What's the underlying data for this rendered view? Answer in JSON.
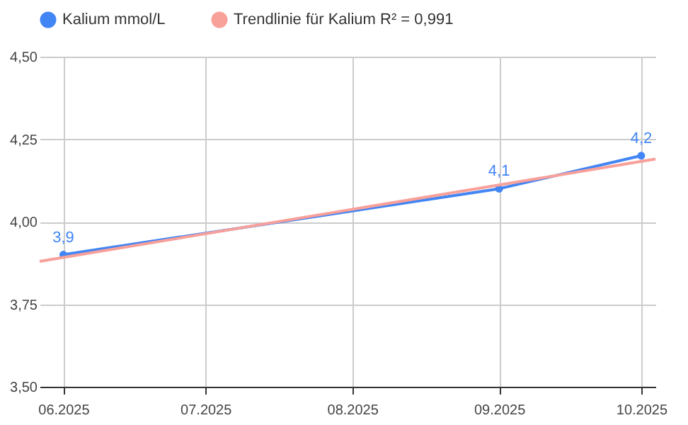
{
  "chart_data": {
    "type": "line",
    "x": [
      "2025-06",
      "2025-09",
      "2025-10"
    ],
    "series": [
      {
        "name": "Kalium mmol/L",
        "color": "#4285f4",
        "values": [
          3.9,
          4.1,
          4.2
        ],
        "value_labels": [
          "3,9",
          "4,1",
          "4,2"
        ],
        "marker": "circle"
      },
      {
        "name": "Trendlinie für Kalium R² = 0,991",
        "color": "#f8a09a",
        "type": "line",
        "x": [
          "2025-05-27",
          "2025-10-04"
        ],
        "values": [
          3.88,
          4.19
        ],
        "marker": "none"
      }
    ],
    "xlim": [
      "2025-05-27",
      "2025-10-04"
    ],
    "xticks": [
      {
        "value": "2025-06",
        "label": "06.2025"
      },
      {
        "value": "2025-07",
        "label": "07.2025"
      },
      {
        "value": "2025-08",
        "label": "08.2025"
      },
      {
        "value": "2025-09",
        "label": "09.2025"
      },
      {
        "value": "2025-10",
        "label": "10.2025"
      }
    ],
    "ylim": [
      3.5,
      4.5
    ],
    "yticks": [
      {
        "value": 3.5,
        "label": "3,50"
      },
      {
        "value": 3.75,
        "label": "3,75"
      },
      {
        "value": 4,
        "label": "4,00"
      },
      {
        "value": 4.25,
        "label": "4,25"
      },
      {
        "value": 4.5,
        "label": "4,50"
      }
    ],
    "grid": true,
    "legend": "top"
  }
}
